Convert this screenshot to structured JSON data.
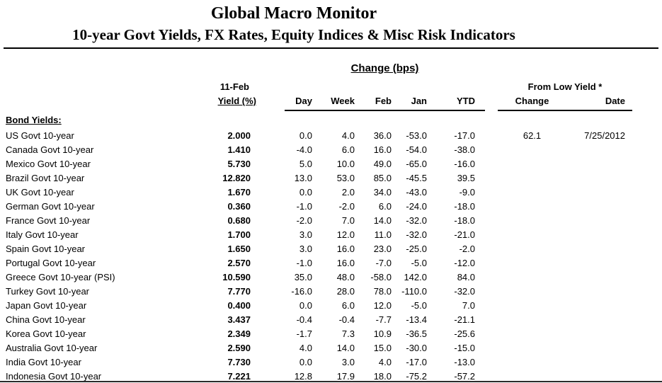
{
  "title": "Global Macro Monitor",
  "subtitle": "10-year Govt Yields, FX Rates, Equity Indices & Misc Risk Indicators",
  "table": {
    "change_bps_header": "Change (bps)",
    "asof_label": "11-Feb",
    "yield_label": "Yield (%)",
    "col_day": "Day",
    "col_week": "Week",
    "col_feb": "Feb",
    "col_jan": "Jan",
    "col_ytd": "YTD",
    "from_low_header": "From Low Yield *",
    "col_low_change": "Change",
    "col_low_date": "Date",
    "section_label": "Bond Yields:",
    "rows": [
      {
        "label": "US Govt 10-year",
        "yield": "2.000",
        "day": "0.0",
        "week": "4.0",
        "feb": "36.0",
        "jan": "-53.0",
        "ytd": "-17.0",
        "low_change": "62.1",
        "low_date": "7/25/2012"
      },
      {
        "label": "Canada Govt 10-year",
        "yield": "1.410",
        "day": "-4.0",
        "week": "6.0",
        "feb": "16.0",
        "jan": "-54.0",
        "ytd": "-38.0",
        "low_change": "",
        "low_date": ""
      },
      {
        "label": "Mexico Govt 10-year",
        "yield": "5.730",
        "day": "5.0",
        "week": "10.0",
        "feb": "49.0",
        "jan": "-65.0",
        "ytd": "-16.0",
        "low_change": "",
        "low_date": ""
      },
      {
        "label": "Brazil Govt 10-year",
        "yield": "12.820",
        "day": "13.0",
        "week": "53.0",
        "feb": "85.0",
        "jan": "-45.5",
        "ytd": "39.5",
        "low_change": "",
        "low_date": ""
      },
      {
        "label": "UK Govt 10-year",
        "yield": "1.670",
        "day": "0.0",
        "week": "2.0",
        "feb": "34.0",
        "jan": "-43.0",
        "ytd": "-9.0",
        "low_change": "",
        "low_date": ""
      },
      {
        "label": "German Govt 10-year",
        "yield": "0.360",
        "day": "-1.0",
        "week": "-2.0",
        "feb": "6.0",
        "jan": "-24.0",
        "ytd": "-18.0",
        "low_change": "",
        "low_date": ""
      },
      {
        "label": "France Govt 10-year",
        "yield": "0.680",
        "day": "-2.0",
        "week": "7.0",
        "feb": "14.0",
        "jan": "-32.0",
        "ytd": "-18.0",
        "low_change": "",
        "low_date": ""
      },
      {
        "label": "Italy Govt 10-year",
        "yield": "1.700",
        "day": "3.0",
        "week": "12.0",
        "feb": "11.0",
        "jan": "-32.0",
        "ytd": "-21.0",
        "low_change": "",
        "low_date": ""
      },
      {
        "label": "Spain Govt 10-year",
        "yield": "1.650",
        "day": "3.0",
        "week": "16.0",
        "feb": "23.0",
        "jan": "-25.0",
        "ytd": "-2.0",
        "low_change": "",
        "low_date": ""
      },
      {
        "label": "Portugal Govt 10-year",
        "yield": "2.570",
        "day": "-1.0",
        "week": "16.0",
        "feb": "-7.0",
        "jan": "-5.0",
        "ytd": "-12.0",
        "low_change": "",
        "low_date": ""
      },
      {
        "label": "Greece Govt 10-year (PSI)",
        "yield": "10.590",
        "day": "35.0",
        "week": "48.0",
        "feb": "-58.0",
        "jan": "142.0",
        "ytd": "84.0",
        "low_change": "",
        "low_date": ""
      },
      {
        "label": "Turkey Govt 10-year",
        "yield": "7.770",
        "day": "-16.0",
        "week": "28.0",
        "feb": "78.0",
        "jan": "-110.0",
        "ytd": "-32.0",
        "low_change": "",
        "low_date": ""
      },
      {
        "label": "Japan Govt 10-year",
        "yield": "0.400",
        "day": "0.0",
        "week": "6.0",
        "feb": "12.0",
        "jan": "-5.0",
        "ytd": "7.0",
        "low_change": "",
        "low_date": ""
      },
      {
        "label": "China Govt 10-year",
        "yield": "3.437",
        "day": "-0.4",
        "week": "-0.4",
        "feb": "-7.7",
        "jan": "-13.4",
        "ytd": "-21.1",
        "low_change": "",
        "low_date": ""
      },
      {
        "label": "Korea Govt 10-year",
        "yield": "2.349",
        "day": "-1.7",
        "week": "7.3",
        "feb": "10.9",
        "jan": "-36.5",
        "ytd": "-25.6",
        "low_change": "",
        "low_date": ""
      },
      {
        "label": "Australia Govt 10-year",
        "yield": "2.590",
        "day": "4.0",
        "week": "14.0",
        "feb": "15.0",
        "jan": "-30.0",
        "ytd": "-15.0",
        "low_change": "",
        "low_date": ""
      },
      {
        "label": "India Govt 10-year",
        "yield": "7.730",
        "day": "0.0",
        "week": "3.0",
        "feb": "4.0",
        "jan": "-17.0",
        "ytd": "-13.0",
        "low_change": "",
        "low_date": ""
      },
      {
        "label": "Indonesia Govt 10-year",
        "yield": "7.221",
        "day": "12.8",
        "week": "17.9",
        "feb": "18.0",
        "jan": "-75.2",
        "ytd": "-57.2",
        "low_change": "",
        "low_date": ""
      }
    ]
  }
}
